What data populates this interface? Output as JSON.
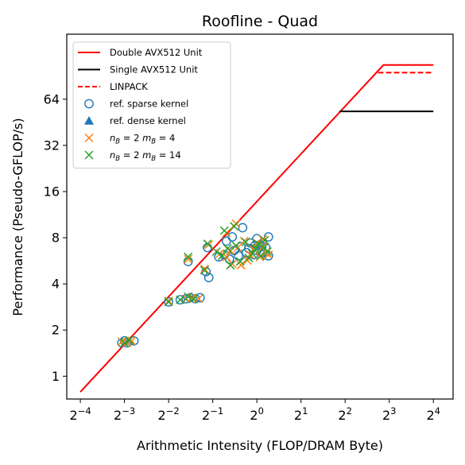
{
  "chart_data": {
    "type": "scatter",
    "title": "Roofline - Quad",
    "xlabel": "Arithmetic Intensity (FLOP/DRAM Byte)",
    "ylabel": "Performance (Pseudo-GFLOP/s)",
    "x_scale": "log2",
    "y_scale": "log2",
    "xlim": [
      0.0505,
      21.8
    ],
    "ylim": [
      0.71,
      170
    ],
    "x_ticks": [
      {
        "value": 0.0625,
        "base": "2",
        "exp": "−4"
      },
      {
        "value": 0.125,
        "base": "2",
        "exp": "−3"
      },
      {
        "value": 0.25,
        "base": "2",
        "exp": "−2"
      },
      {
        "value": 0.5,
        "base": "2",
        "exp": "−1"
      },
      {
        "value": 1,
        "base": "2",
        "exp": "0"
      },
      {
        "value": 2,
        "base": "2",
        "exp": "1"
      },
      {
        "value": 4,
        "base": "2",
        "exp": "2"
      },
      {
        "value": 8,
        "base": "2",
        "exp": "3"
      },
      {
        "value": 16,
        "base": "2",
        "exp": "4"
      }
    ],
    "y_ticks": [
      {
        "value": 1,
        "label": "1"
      },
      {
        "value": 2,
        "label": "2"
      },
      {
        "value": 4,
        "label": "4"
      },
      {
        "value": 8,
        "label": "8"
      },
      {
        "value": 16,
        "label": "16"
      },
      {
        "value": 32,
        "label": "32"
      },
      {
        "value": 64,
        "label": "64"
      }
    ],
    "grid": false,
    "legend_position": "upper-left",
    "lines": [
      {
        "name": "Double AVX512 Unit",
        "color": "#ff0000",
        "style": "solid",
        "points": [
          [
            0.0625,
            0.79
          ],
          [
            7.3,
            107
          ],
          [
            16,
            107
          ]
        ]
      },
      {
        "name": "Single AVX512 Unit",
        "color": "#000000",
        "style": "solid",
        "points": [
          [
            3.65,
            53.3
          ],
          [
            16,
            53.3
          ]
        ]
      },
      {
        "name": "LINPACK",
        "color": "#ff0000",
        "style": "dashed",
        "points": [
          [
            6.7,
            95.5
          ],
          [
            16,
            95.5
          ]
        ]
      }
    ],
    "series": [
      {
        "name": "ref. sparse kernel",
        "marker": "circle-open",
        "color": "#1f77b4",
        "points": [
          [
            0.12,
            1.65
          ],
          [
            0.125,
            1.7
          ],
          [
            0.13,
            1.65
          ],
          [
            0.145,
            1.7
          ],
          [
            0.25,
            3.05
          ],
          [
            0.3,
            3.15
          ],
          [
            0.33,
            3.2
          ],
          [
            0.35,
            3.25
          ],
          [
            0.38,
            3.2
          ],
          [
            0.41,
            3.25
          ],
          [
            0.34,
            5.6
          ],
          [
            0.45,
            4.8
          ],
          [
            0.47,
            4.4
          ],
          [
            0.46,
            6.9
          ],
          [
            0.55,
            6.0
          ],
          [
            0.6,
            6.2
          ],
          [
            0.65,
            5.8
          ],
          [
            0.7,
            6.6
          ],
          [
            0.62,
            7.6
          ],
          [
            0.68,
            8.1
          ],
          [
            0.75,
            6.1
          ],
          [
            0.78,
            7.0
          ],
          [
            0.8,
            9.3
          ],
          [
            0.85,
            6.4
          ],
          [
            0.88,
            6.8
          ],
          [
            0.9,
            7.4
          ],
          [
            0.95,
            6.2
          ],
          [
            1.0,
            6.6
          ],
          [
            1.05,
            7.2
          ],
          [
            1.1,
            6.4
          ],
          [
            1.15,
            6.9
          ],
          [
            1.2,
            6.1
          ],
          [
            1.0,
            7.9
          ],
          [
            1.2,
            8.1
          ],
          [
            0.97,
            7.1
          ],
          [
            1.08,
            7.0
          ]
        ]
      },
      {
        "name": "ref. dense kernel",
        "marker": "triangle",
        "color": "#1f77b4",
        "points": []
      },
      {
        "name": "n_B = 2 m_B = 4",
        "marker": "x",
        "color": "#ff7f0e",
        "points": [
          [
            0.12,
            1.68
          ],
          [
            0.13,
            1.65
          ],
          [
            0.14,
            1.7
          ],
          [
            0.25,
            3.1
          ],
          [
            0.33,
            3.2
          ],
          [
            0.36,
            3.25
          ],
          [
            0.4,
            3.2
          ],
          [
            0.34,
            5.8
          ],
          [
            0.44,
            5.0
          ],
          [
            0.47,
            7.2
          ],
          [
            0.56,
            6.3
          ],
          [
            0.62,
            6.0
          ],
          [
            0.66,
            6.6
          ],
          [
            0.62,
            8.6
          ],
          [
            0.72,
            9.9
          ],
          [
            0.68,
            5.4
          ],
          [
            0.74,
            6.9
          ],
          [
            0.78,
            5.3
          ],
          [
            0.82,
            7.6
          ],
          [
            0.86,
            5.7
          ],
          [
            0.9,
            6.2
          ],
          [
            0.95,
            6.7
          ],
          [
            1.0,
            7.4
          ],
          [
            1.05,
            6.0
          ],
          [
            1.1,
            7.0
          ],
          [
            1.15,
            6.4
          ],
          [
            1.2,
            6.2
          ],
          [
            1.1,
            7.8
          ]
        ]
      },
      {
        "name": "n_B = 2 m_B = 14",
        "marker": "x",
        "color": "#2ca02c",
        "points": [
          [
            0.125,
            1.65
          ],
          [
            0.135,
            1.72
          ],
          [
            0.25,
            3.05
          ],
          [
            0.3,
            3.15
          ],
          [
            0.34,
            3.3
          ],
          [
            0.37,
            3.2
          ],
          [
            0.34,
            6.0
          ],
          [
            0.44,
            4.9
          ],
          [
            0.46,
            7.3
          ],
          [
            0.53,
            6.5
          ],
          [
            0.58,
            6.1
          ],
          [
            0.63,
            6.8
          ],
          [
            0.6,
            8.9
          ],
          [
            0.7,
            9.5
          ],
          [
            0.66,
            5.3
          ],
          [
            0.72,
            7.1
          ],
          [
            0.77,
            5.6
          ],
          [
            0.84,
            7.5
          ],
          [
            0.88,
            5.9
          ],
          [
            0.93,
            6.3
          ],
          [
            0.98,
            6.8
          ],
          [
            1.02,
            7.3
          ],
          [
            1.06,
            6.1
          ],
          [
            1.12,
            6.9
          ],
          [
            1.18,
            6.5
          ],
          [
            1.13,
            7.7
          ]
        ]
      }
    ]
  }
}
